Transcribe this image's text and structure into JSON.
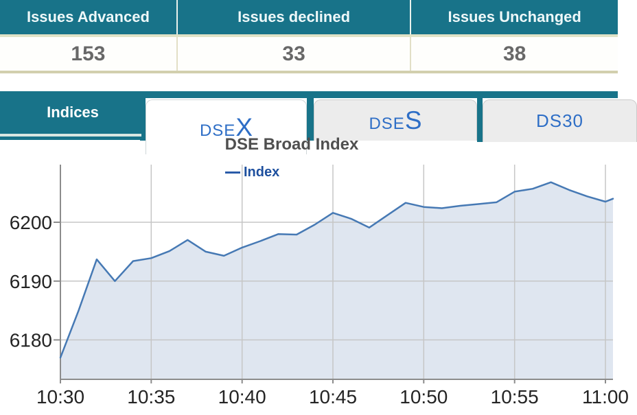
{
  "summary_table": {
    "headers": [
      "Issues Advanced",
      "Issues declined",
      "Issues Unchanged"
    ],
    "values": [
      "153",
      "33",
      "38"
    ]
  },
  "tab_bar": {
    "section_label": "Indices",
    "tabs": [
      {
        "name": "DSEX",
        "prefix": "DSE",
        "suffix": "X",
        "active": true
      },
      {
        "name": "DSES",
        "prefix": "DSE",
        "suffix": "S",
        "active": false
      },
      {
        "name": "DS30",
        "prefix": "DS30",
        "suffix": "",
        "active": false
      }
    ]
  },
  "chart_data": {
    "type": "area",
    "title": "DSE Broad Index",
    "legend": [
      {
        "label": "Index",
        "color": "#2a5ba9"
      }
    ],
    "x": [
      "10:30",
      "10:31",
      "10:32",
      "10:33",
      "10:34",
      "10:35",
      "10:36",
      "10:37",
      "10:38",
      "10:39",
      "10:40",
      "10:41",
      "10:42",
      "10:43",
      "10:44",
      "10:45",
      "10:46",
      "10:47",
      "10:48",
      "10:49",
      "10:50",
      "10:51",
      "10:52",
      "10:53",
      "10:54",
      "10:55",
      "10:56",
      "10:57",
      "10:58",
      "10:59",
      "11:00"
    ],
    "series": [
      {
        "name": "Index",
        "values": [
          6177.0,
          6185.0,
          6193.7,
          6190.0,
          6193.4,
          6193.9,
          6195.1,
          6197.0,
          6195.0,
          6194.3,
          6195.7,
          6196.8,
          6198.0,
          6197.9,
          6199.6,
          6201.6,
          6200.6,
          6199.1,
          6201.2,
          6203.3,
          6202.6,
          6202.4,
          6202.8,
          6203.1,
          6203.4,
          6205.2,
          6205.7,
          6206.8,
          6205.5,
          6204.4,
          6203.5
        ]
      }
    ],
    "tail_value": 6204.0,
    "x_tick_labels": [
      "10:30",
      "10:35",
      "10:40",
      "10:45",
      "10:50",
      "10:55",
      "11:00"
    ],
    "y_ticks": [
      6180,
      6190,
      6200
    ],
    "ylim": [
      6173.3,
      6209.8
    ],
    "grid": true,
    "legend_position": "top",
    "line_color": "#4679b4",
    "fill_color": "#dfe6f0",
    "grid_color": "#c6c6c6",
    "axis_color": "#8c8c8c",
    "tick_text_color": "#242424"
  }
}
